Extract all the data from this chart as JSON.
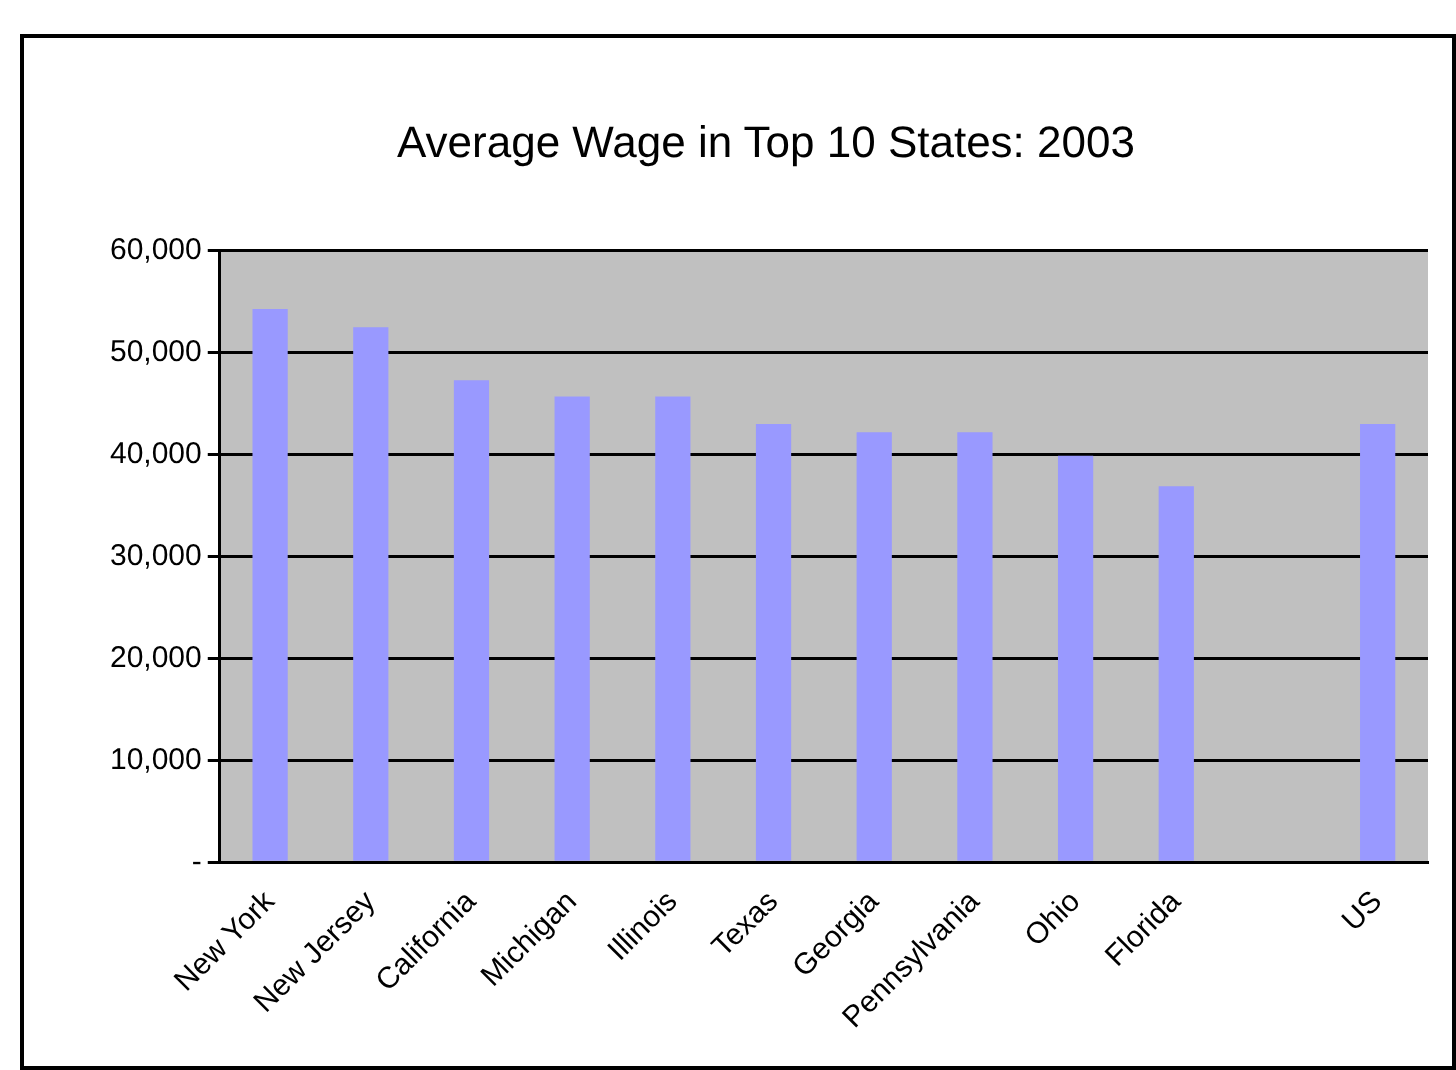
{
  "chart_data": {
    "type": "bar",
    "title": "Average Wage in Top 10 States: 2003",
    "categories": [
      "New York",
      "New Jersey",
      "California",
      "Michigan",
      "Illinois",
      "Texas",
      "Georgia",
      "Pennsylvania",
      "Ohio",
      "Florida",
      null,
      "US"
    ],
    "values": [
      54300,
      52500,
      47300,
      45700,
      45700,
      43000,
      42200,
      42200,
      39900,
      36900,
      null,
      43000
    ],
    "color": "#9999ff",
    "ylim": [
      0,
      60000
    ],
    "yticks": [
      {
        "value": 0,
        "label": "-"
      },
      {
        "value": 10000,
        "label": "10,000"
      },
      {
        "value": 20000,
        "label": "20,000"
      },
      {
        "value": 30000,
        "label": "30,000"
      },
      {
        "value": 40000,
        "label": "40,000"
      },
      {
        "value": 50000,
        "label": "50,000"
      },
      {
        "value": 60000,
        "label": "60,000"
      }
    ],
    "grid": "y",
    "legend": false
  }
}
